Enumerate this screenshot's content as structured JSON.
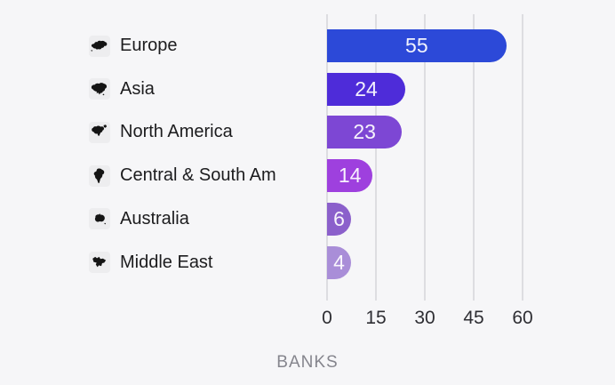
{
  "chart_data": {
    "type": "bar",
    "orientation": "horizontal",
    "title": "",
    "xlabel": "BANKS",
    "ylabel": "",
    "categories": [
      "Europe",
      "Asia",
      "North America",
      "Central & South Am",
      "Australia",
      "Middle East"
    ],
    "values": [
      55,
      24,
      23,
      14,
      6,
      4
    ],
    "bar_colors": [
      "#2c49d8",
      "#4e2cd9",
      "#7d47d4",
      "#9e40de",
      "#8b60cb",
      "#a98ed8"
    ],
    "icons": [
      "europe-map-icon",
      "asia-map-icon",
      "north-america-map-icon",
      "central-south-america-map-icon",
      "australia-map-icon",
      "middle-east-map-icon"
    ],
    "x_ticks": [
      "0",
      "15",
      "30",
      "45",
      "60"
    ],
    "xlim": [
      0,
      60
    ],
    "grid": true,
    "legend": false,
    "value_labels": "inside-center"
  },
  "colors": {
    "background": "#f6f6f8",
    "gridline": "#dddde1",
    "category_text": "#1c1c1e",
    "tick_text": "#2e2e33",
    "axis_title_text": "#85858d",
    "value_text": "#ffffff",
    "icon_fill": "#141414"
  }
}
